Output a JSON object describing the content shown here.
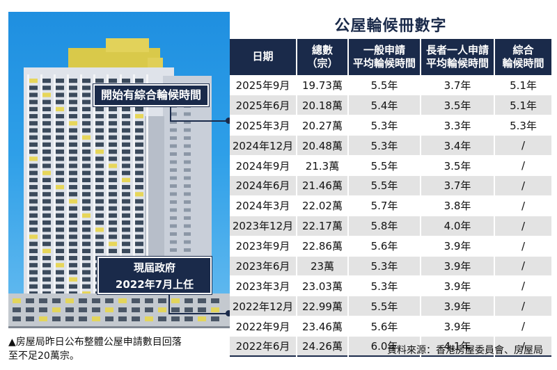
{
  "photo": {
    "callout_1": "開始有綜合輪候時間",
    "callout_2_line1": "現屆政府",
    "callout_2_line2": "2022年7月上任"
  },
  "caption": {
    "line1": "▲房屋局昨日公布整體公屋申請數目回落",
    "line2": "至不足20萬宗。"
  },
  "table": {
    "title": "公屋輪候冊數字",
    "headers": {
      "date": "日期",
      "total_l1": "總數",
      "total_l2": "（宗）",
      "general_l1": "一般申請",
      "general_l2": "平均輪候時間",
      "elderly_l1": "長者一人申請",
      "elderly_l2": "平均輪候時間",
      "combined_l1": "綜合",
      "combined_l2": "輪候時間"
    },
    "rows": [
      {
        "date": "2025年9月",
        "total": "19.73萬",
        "general": "5.5年",
        "elderly": "3.7年",
        "combined": "5.1年"
      },
      {
        "date": "2025年6月",
        "total": "20.18萬",
        "general": "5.4年",
        "elderly": "3.5年",
        "combined": "5.1年"
      },
      {
        "date": "2025年3月",
        "total": "20.27萬",
        "general": "5.3年",
        "elderly": "3.3年",
        "combined": "5.3年"
      },
      {
        "date": "2024年12月",
        "total": "20.48萬",
        "general": "5.3年",
        "elderly": "3.4年",
        "combined": "/"
      },
      {
        "date": "2024年9月",
        "total": "21.3萬",
        "general": "5.5年",
        "elderly": "3.5年",
        "combined": "/"
      },
      {
        "date": "2024年6月",
        "total": "21.46萬",
        "general": "5.5年",
        "elderly": "3.7年",
        "combined": "/"
      },
      {
        "date": "2024年3月",
        "total": "22.02萬",
        "general": "5.7年",
        "elderly": "3.8年",
        "combined": "/"
      },
      {
        "date": "2023年12月",
        "total": "22.17萬",
        "general": "5.8年",
        "elderly": "4.0年",
        "combined": "/"
      },
      {
        "date": "2023年9月",
        "total": "22.86萬",
        "general": "5.6年",
        "elderly": "3.9年",
        "combined": "/"
      },
      {
        "date": "2023年6月",
        "total": "23萬",
        "general": "5.3年",
        "elderly": "3.9年",
        "combined": "/"
      },
      {
        "date": "2023年3月",
        "total": "23.03萬",
        "general": "5.3年",
        "elderly": "3.9年",
        "combined": "/"
      },
      {
        "date": "2022年12月",
        "total": "22.99萬",
        "general": "5.5年",
        "elderly": "3.9年",
        "combined": "/"
      },
      {
        "date": "2022年9月",
        "total": "23.46萬",
        "general": "5.6年",
        "elderly": "3.9年",
        "combined": "/"
      },
      {
        "date": "2022年6月",
        "total": "24.26萬",
        "general": "6.0年",
        "elderly": "4.1年",
        "combined": "/"
      }
    ]
  },
  "source": "資料來源：香港房屋委員會、房屋局",
  "colors": {
    "header_navy": "#1a2a4a",
    "row_stripe": "#e3e3e3",
    "sky": "#2e9fe8"
  }
}
